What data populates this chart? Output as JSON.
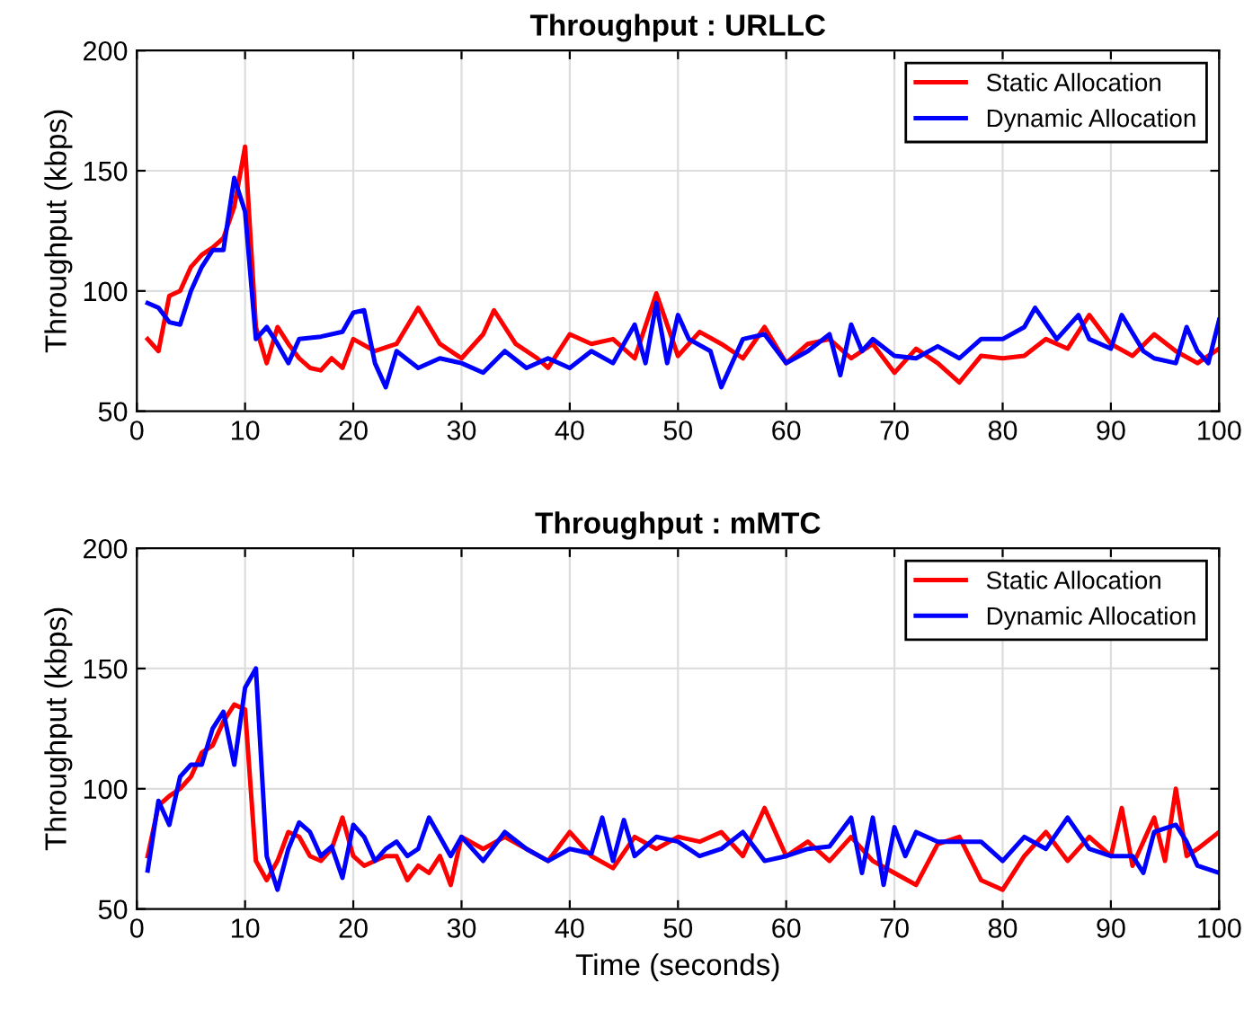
{
  "chart_data": [
    {
      "type": "line",
      "title": "Throughput : URLLC",
      "ylabel": "Throughput (kbps)",
      "xlim": [
        0,
        100
      ],
      "ylim": [
        50,
        200
      ],
      "xticks": [
        0,
        10,
        20,
        30,
        40,
        50,
        60,
        70,
        80,
        90,
        100
      ],
      "yticks": [
        50,
        100,
        150,
        200
      ],
      "grid": true,
      "legend": "top right",
      "line_style": "solid",
      "series": [
        {
          "name": "Static Allocation",
          "color": "#ff0000",
          "x": [
            1,
            2,
            3,
            4,
            5,
            6,
            7,
            8,
            9,
            10,
            11,
            12,
            13,
            14,
            15,
            16,
            17,
            18,
            19,
            20,
            22,
            24,
            26,
            28,
            30,
            32,
            33,
            35,
            37,
            38,
            40,
            42,
            44,
            46,
            48,
            50,
            52,
            54,
            56,
            58,
            60,
            62,
            64,
            66,
            68,
            70,
            72,
            74,
            76,
            78,
            80,
            82,
            84,
            86,
            88,
            90,
            92,
            94,
            96,
            98,
            100
          ],
          "values": [
            80,
            75,
            98,
            100,
            110,
            115,
            118,
            122,
            135,
            160,
            85,
            70,
            85,
            78,
            72,
            68,
            67,
            72,
            68,
            80,
            75,
            78,
            93,
            78,
            72,
            82,
            92,
            78,
            72,
            68,
            82,
            78,
            80,
            72,
            99,
            73,
            83,
            78,
            72,
            85,
            70,
            78,
            80,
            72,
            78,
            66,
            76,
            70,
            62,
            73,
            72,
            73,
            80,
            76,
            90,
            78,
            73,
            82,
            75,
            70,
            76
          ]
        },
        {
          "name": "Dynamic Allocation",
          "color": "#0000ff",
          "x": [
            1,
            2,
            3,
            4,
            5,
            6,
            7,
            8,
            9,
            10,
            11,
            12,
            13,
            14,
            15,
            17,
            19,
            20,
            21,
            22,
            23,
            24,
            26,
            28,
            30,
            32,
            34,
            36,
            38,
            40,
            42,
            44,
            46,
            47,
            48,
            49,
            50,
            51,
            53,
            54,
            56,
            58,
            60,
            62,
            64,
            65,
            66,
            67,
            68,
            70,
            72,
            74,
            76,
            78,
            80,
            82,
            83,
            85,
            87,
            88,
            90,
            91,
            93,
            94,
            96,
            97,
            98,
            99,
            100
          ],
          "values": [
            95,
            93,
            87,
            86,
            100,
            110,
            117,
            117,
            147,
            133,
            80,
            85,
            78,
            70,
            80,
            81,
            83,
            91,
            92,
            70,
            60,
            75,
            68,
            72,
            70,
            66,
            75,
            68,
            72,
            68,
            75,
            70,
            86,
            70,
            95,
            70,
            90,
            80,
            75,
            60,
            80,
            82,
            70,
            75,
            82,
            65,
            86,
            75,
            80,
            73,
            72,
            77,
            72,
            80,
            80,
            85,
            93,
            80,
            90,
            80,
            76,
            90,
            75,
            72,
            70,
            85,
            75,
            70,
            88
          ]
        }
      ]
    },
    {
      "type": "line",
      "title": "Throughput : mMTC",
      "xlabel": "Time (seconds)",
      "ylabel": "Throughput (kbps)",
      "xlim": [
        0,
        100
      ],
      "ylim": [
        50,
        200
      ],
      "xticks": [
        0,
        10,
        20,
        30,
        40,
        50,
        60,
        70,
        80,
        90,
        100
      ],
      "yticks": [
        50,
        100,
        150,
        200
      ],
      "grid": true,
      "legend": "top right",
      "line_style": "solid",
      "series": [
        {
          "name": "Static Allocation",
          "color": "#ff0000",
          "x": [
            1,
            2,
            3,
            4,
            5,
            6,
            7,
            8,
            9,
            10,
            11,
            12,
            13,
            14,
            15,
            16,
            17,
            18,
            19,
            20,
            21,
            22,
            23,
            24,
            25,
            26,
            27,
            28,
            29,
            30,
            32,
            34,
            36,
            38,
            40,
            42,
            44,
            46,
            48,
            50,
            52,
            54,
            56,
            58,
            60,
            62,
            64,
            66,
            68,
            70,
            72,
            74,
            76,
            78,
            80,
            82,
            84,
            86,
            88,
            90,
            91,
            92,
            94,
            95,
            96,
            97,
            98,
            100
          ],
          "values": [
            72,
            93,
            97,
            100,
            105,
            115,
            118,
            128,
            135,
            133,
            70,
            62,
            70,
            82,
            80,
            72,
            70,
            75,
            88,
            72,
            68,
            70,
            72,
            72,
            62,
            68,
            65,
            72,
            60,
            80,
            75,
            80,
            75,
            70,
            82,
            72,
            67,
            80,
            75,
            80,
            78,
            82,
            72,
            92,
            72,
            78,
            70,
            80,
            70,
            65,
            60,
            77,
            80,
            62,
            58,
            72,
            82,
            70,
            80,
            72,
            92,
            68,
            88,
            70,
            100,
            72,
            75,
            82
          ]
        },
        {
          "name": "Dynamic Allocation",
          "color": "#0000ff",
          "x": [
            1,
            2,
            3,
            4,
            5,
            6,
            7,
            8,
            9,
            10,
            11,
            12,
            13,
            14,
            15,
            16,
            17,
            18,
            19,
            20,
            21,
            22,
            23,
            24,
            25,
            26,
            27,
            28,
            29,
            30,
            32,
            34,
            36,
            38,
            40,
            42,
            43,
            44,
            45,
            46,
            48,
            50,
            52,
            54,
            56,
            58,
            60,
            62,
            64,
            66,
            67,
            68,
            69,
            70,
            71,
            72,
            74,
            76,
            78,
            80,
            82,
            84,
            86,
            88,
            90,
            92,
            93,
            94,
            96,
            97,
            98,
            100
          ],
          "values": [
            66,
            95,
            85,
            105,
            110,
            110,
            125,
            132,
            110,
            142,
            150,
            72,
            58,
            75,
            86,
            82,
            72,
            76,
            63,
            85,
            80,
            70,
            75,
            78,
            72,
            75,
            88,
            80,
            72,
            80,
            70,
            82,
            75,
            70,
            75,
            73,
            88,
            70,
            87,
            72,
            80,
            78,
            72,
            75,
            82,
            70,
            72,
            75,
            76,
            88,
            65,
            88,
            60,
            84,
            72,
            82,
            78,
            78,
            78,
            70,
            80,
            75,
            88,
            75,
            72,
            72,
            65,
            82,
            85,
            78,
            68,
            65
          ]
        }
      ]
    }
  ]
}
